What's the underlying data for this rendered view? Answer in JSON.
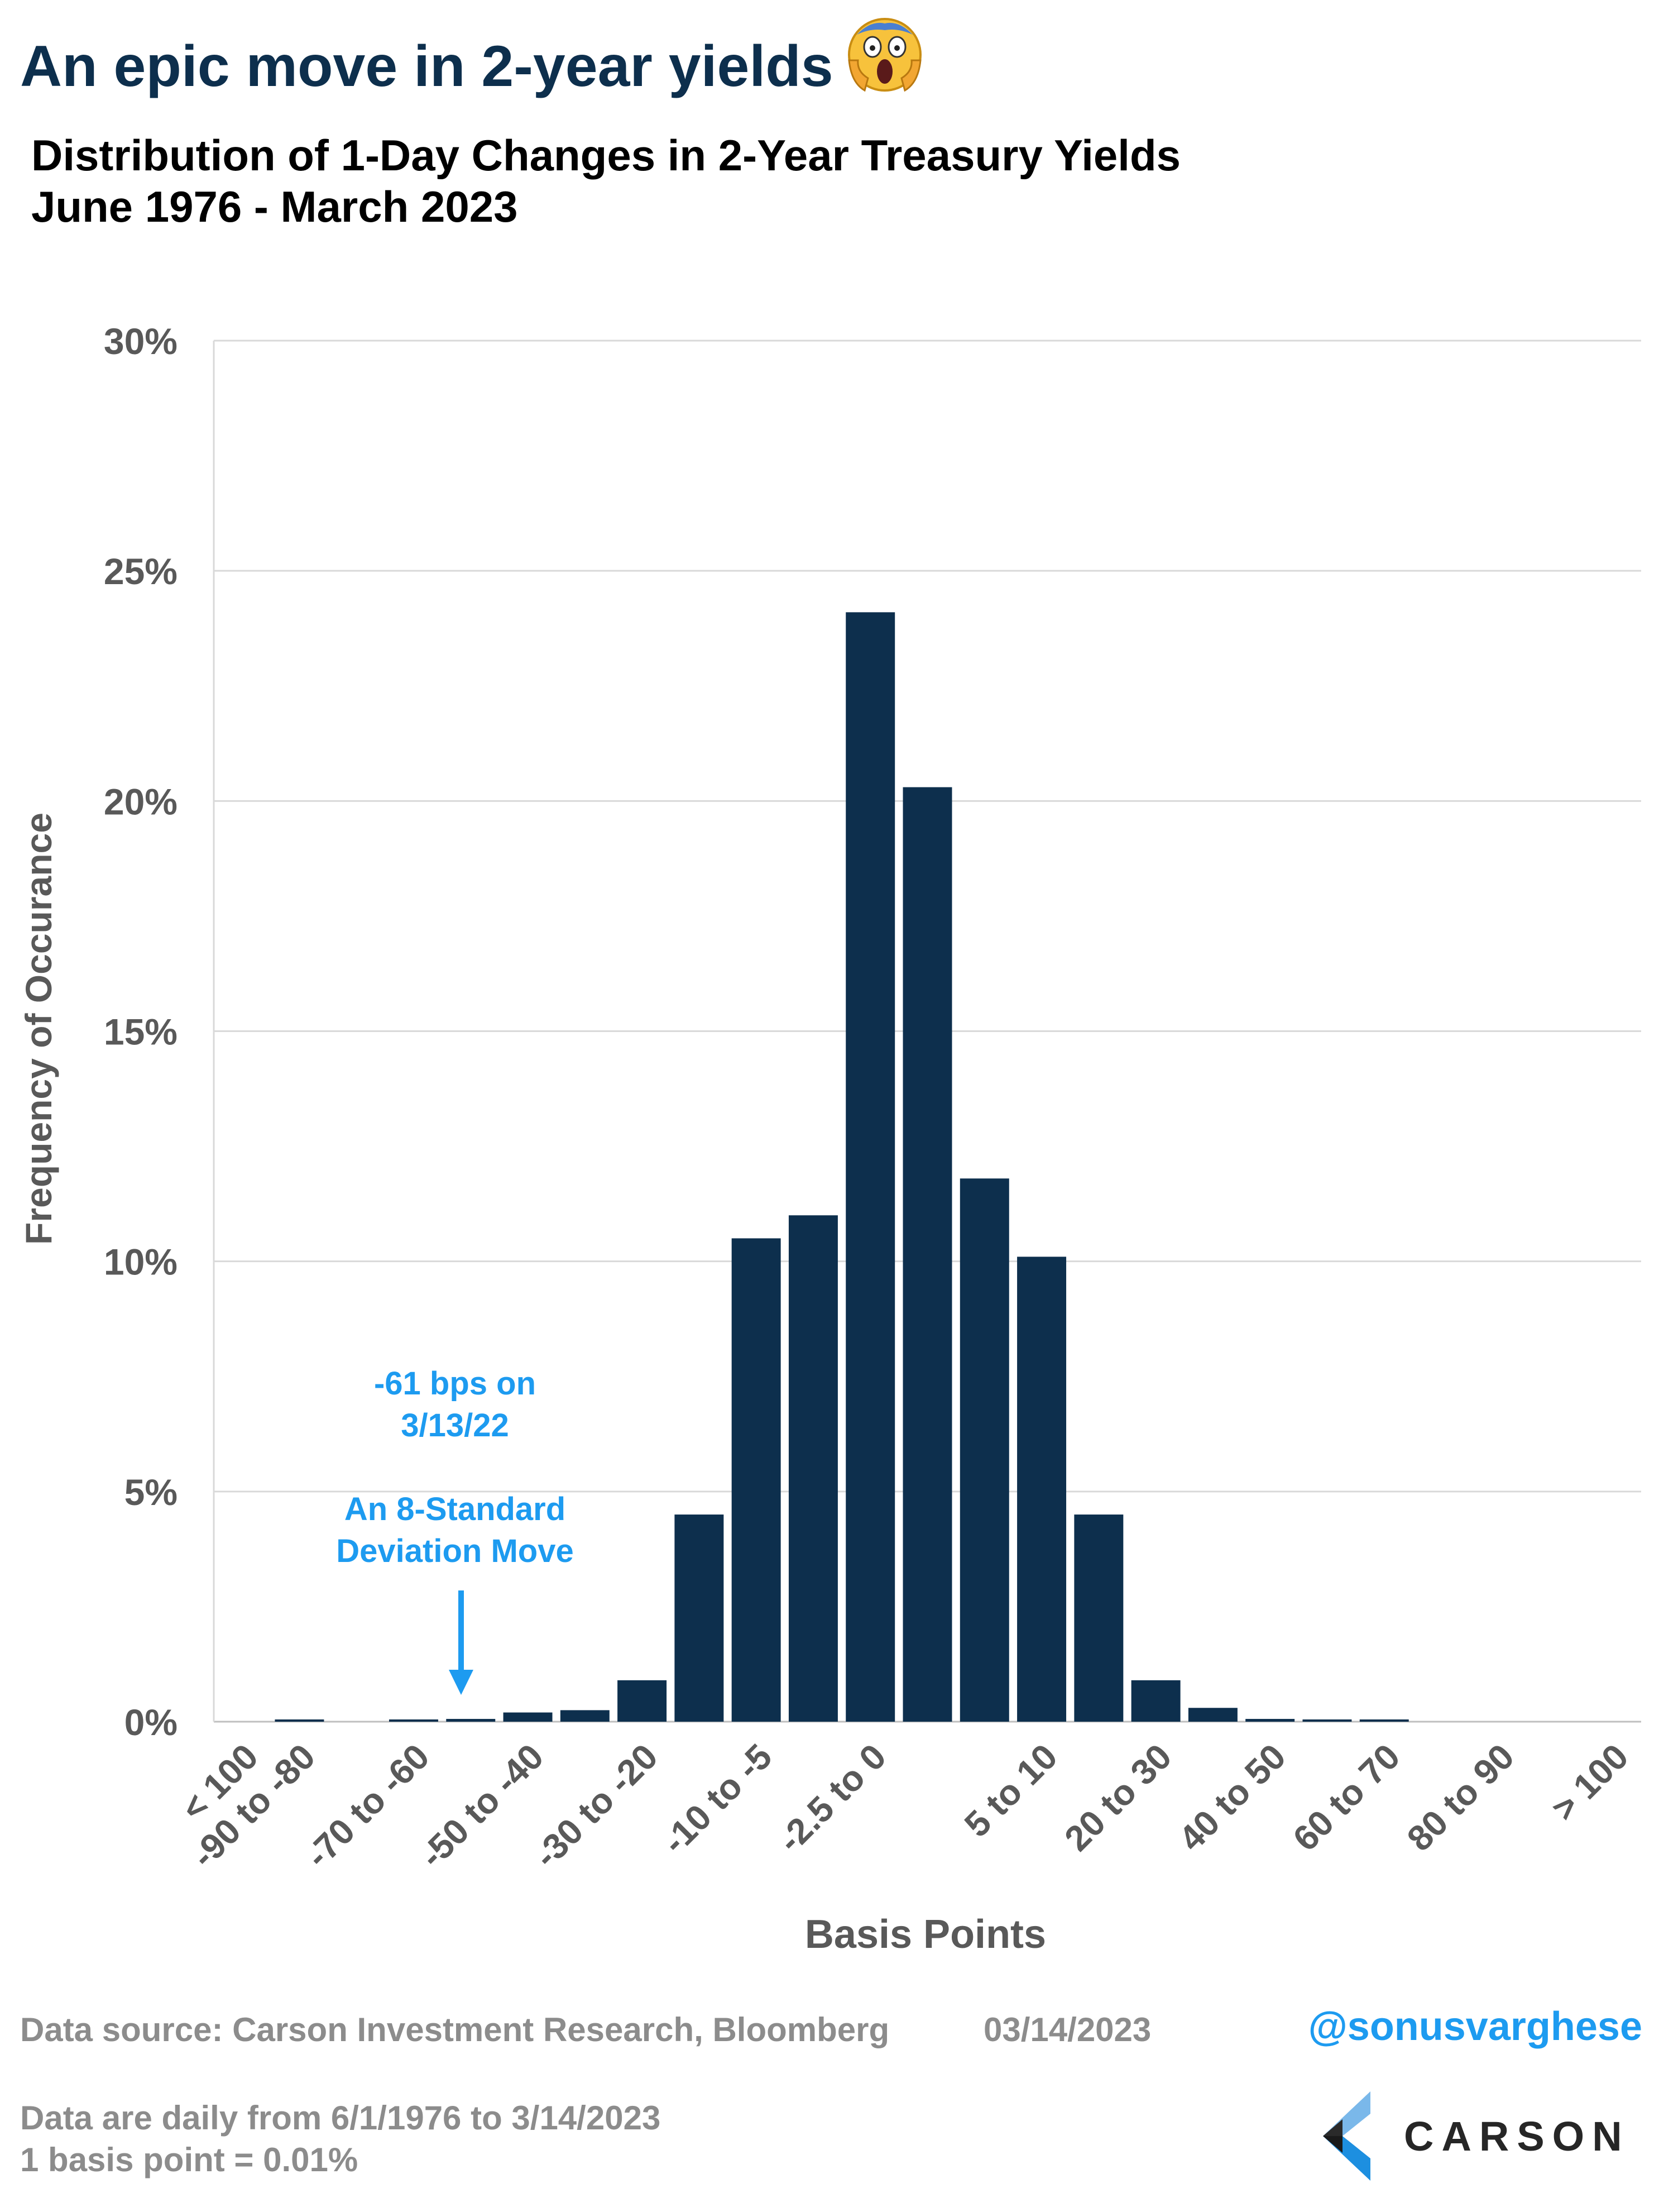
{
  "header": {
    "title": "An epic move in 2-year yields",
    "emoji_icon": "face-screaming-in-fear-icon",
    "subtitle_line1": "Distribution of 1-Day Changes in 2-Year Treasury Yields",
    "subtitle_line2": "June 1976 - March 2023"
  },
  "chart_data": {
    "type": "bar",
    "categories": [
      "< 100",
      "-90 to -80",
      "-80 to -70",
      "-70 to -60",
      "-60 to -50",
      "-50 to -40",
      "-40 to -30",
      "-30 to -20",
      "-20 to -10",
      "-10 to -5",
      "-5 to -2.5",
      "-2.5 to 0",
      "0 to 2.5",
      "2.5 to 5",
      "5 to 10",
      "10 to 20",
      "20 to 30",
      "30 to 40",
      "40 to 50",
      "50 to 60",
      "60 to 70",
      "70 to 80",
      "80 to 90",
      "90 to 100",
      "> 100"
    ],
    "tick_labels_shown": [
      "< 100",
      "-90 to -80",
      "-70 to -60",
      "-50 to -40",
      "-30 to -20",
      "-10 to -5",
      "-2.5 to 0",
      "5 to 10",
      "20 to 30",
      "40 to 50",
      "60 to 70",
      "80 to 90",
      "> 100"
    ],
    "values": [
      0,
      0.01,
      0,
      0.04,
      0.06,
      0.2,
      0.25,
      0.9,
      4.5,
      10.5,
      11.0,
      24.1,
      20.3,
      11.8,
      10.1,
      4.5,
      0.9,
      0.3,
      0.06,
      0.03,
      0.01,
      0,
      0,
      0,
      0
    ],
    "ylabel": "Frequency of Occurance",
    "xlabel": "Basis Points",
    "ylim": [
      0,
      30
    ],
    "yticks": [
      "0%",
      "5%",
      "10%",
      "15%",
      "20%",
      "25%",
      "30%"
    ],
    "grid": true,
    "bar_color": "#0d2f4d",
    "annotation": {
      "line1": "-61 bps on",
      "line2": "3/13/22",
      "line3": "An 8-Standard",
      "line4": "Deviation Move",
      "color": "#1d9bf0",
      "category": "-70 to -60"
    }
  },
  "footer": {
    "source": "Data source: Carson Investment Research, Bloomberg",
    "date": "03/14/2023",
    "handle": "@sonusvarghese",
    "note1": "Data are daily from 6/1/1976 to 3/14/2023",
    "note2": "1 basis point = 0.01%",
    "logo_text": "CARSON",
    "logo_icon": "carson-logo-icon"
  }
}
